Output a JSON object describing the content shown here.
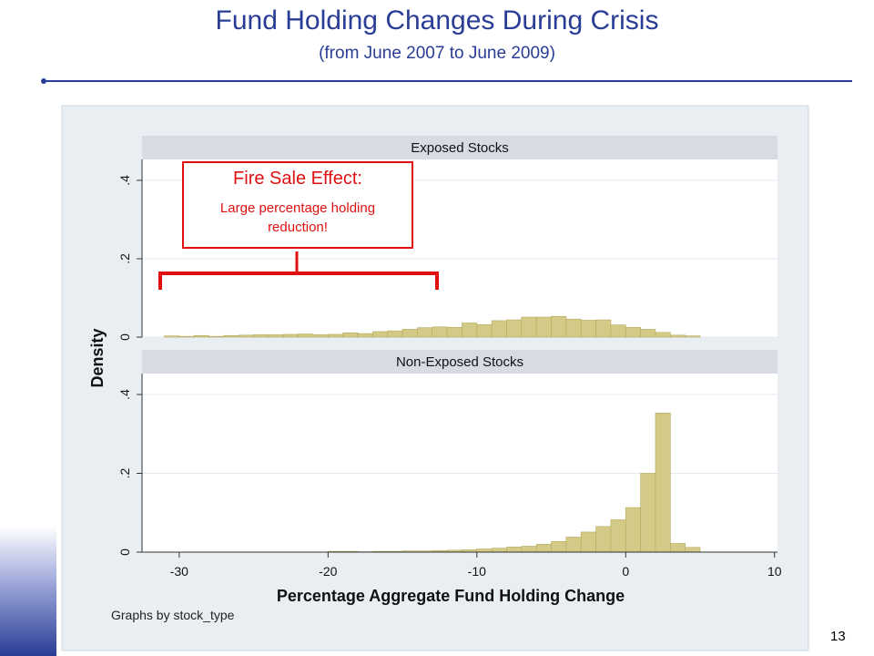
{
  "slide": {
    "title": "Fund Holding Changes During Crisis",
    "subtitle": "(from June 2007 to June 2009)",
    "page_number": "13"
  },
  "callout": {
    "heading": "Fire Sale Effect:",
    "body": "Large percentage holding reduction!"
  },
  "colors": {
    "title": "#2a3d96",
    "bar_fill": "#d4ca87",
    "bar_stroke": "#b3a95c",
    "panel_header": "#d6dbe4",
    "plot_background": "#e9eef3",
    "annotation": "#e01010"
  },
  "chart_data": {
    "type": "bar",
    "subtype": "histogram",
    "xlabel": "Percentage Aggregate Fund Holding Change",
    "ylabel": "Density",
    "note": "Graphs by stock_type",
    "xlim": [
      -32.5,
      10.2
    ],
    "x_ticks": [
      -30,
      -20,
      -10,
      0,
      10
    ],
    "ylim": [
      0,
      0.43
    ],
    "y_ticks": [
      0,
      0.2,
      0.4
    ],
    "bin_width": 1,
    "legend": "none",
    "grid": "horizontal",
    "panels": [
      {
        "name": "Exposed Stocks",
        "bins": [
          {
            "x0": -31,
            "density": 0.003
          },
          {
            "x0": -30,
            "density": 0.002
          },
          {
            "x0": -29,
            "density": 0.004
          },
          {
            "x0": -28,
            "density": 0.002
          },
          {
            "x0": -27,
            "density": 0.004
          },
          {
            "x0": -26,
            "density": 0.005
          },
          {
            "x0": -25,
            "density": 0.006
          },
          {
            "x0": -24,
            "density": 0.006
          },
          {
            "x0": -23,
            "density": 0.007
          },
          {
            "x0": -22,
            "density": 0.008
          },
          {
            "x0": -21,
            "density": 0.006
          },
          {
            "x0": -20,
            "density": 0.007
          },
          {
            "x0": -19,
            "density": 0.011
          },
          {
            "x0": -18,
            "density": 0.009
          },
          {
            "x0": -17,
            "density": 0.014
          },
          {
            "x0": -16,
            "density": 0.016
          },
          {
            "x0": -15,
            "density": 0.02
          },
          {
            "x0": -14,
            "density": 0.024
          },
          {
            "x0": -13,
            "density": 0.026
          },
          {
            "x0": -12,
            "density": 0.025
          },
          {
            "x0": -11,
            "density": 0.036
          },
          {
            "x0": -10,
            "density": 0.032
          },
          {
            "x0": -9,
            "density": 0.042
          },
          {
            "x0": -8,
            "density": 0.044
          },
          {
            "x0": -7,
            "density": 0.051
          },
          {
            "x0": -6,
            "density": 0.051
          },
          {
            "x0": -5,
            "density": 0.053
          },
          {
            "x0": -4,
            "density": 0.046
          },
          {
            "x0": -3,
            "density": 0.043
          },
          {
            "x0": -2,
            "density": 0.044
          },
          {
            "x0": -1,
            "density": 0.031
          },
          {
            "x0": 0,
            "density": 0.025
          },
          {
            "x0": 1,
            "density": 0.02
          },
          {
            "x0": 2,
            "density": 0.012
          },
          {
            "x0": 3,
            "density": 0.005
          },
          {
            "x0": 4,
            "density": 0.003
          }
        ]
      },
      {
        "name": "Non-Exposed Stocks",
        "bins": [
          {
            "x0": -20,
            "density": 0.002
          },
          {
            "x0": -19,
            "density": 0.002
          },
          {
            "x0": -18,
            "density": 0.001
          },
          {
            "x0": -17,
            "density": 0.002
          },
          {
            "x0": -16,
            "density": 0.002
          },
          {
            "x0": -15,
            "density": 0.003
          },
          {
            "x0": -14,
            "density": 0.003
          },
          {
            "x0": -13,
            "density": 0.004
          },
          {
            "x0": -12,
            "density": 0.005
          },
          {
            "x0": -11,
            "density": 0.006
          },
          {
            "x0": -10,
            "density": 0.008
          },
          {
            "x0": -9,
            "density": 0.01
          },
          {
            "x0": -8,
            "density": 0.013
          },
          {
            "x0": -7,
            "density": 0.015
          },
          {
            "x0": -6,
            "density": 0.02
          },
          {
            "x0": -5,
            "density": 0.027
          },
          {
            "x0": -4,
            "density": 0.038
          },
          {
            "x0": -3,
            "density": 0.051
          },
          {
            "x0": -2,
            "density": 0.065
          },
          {
            "x0": -1,
            "density": 0.082
          },
          {
            "x0": 0,
            "density": 0.113
          },
          {
            "x0": 1,
            "density": 0.2
          },
          {
            "x0": 2,
            "density": 0.353
          },
          {
            "x0": 3,
            "density": 0.022
          },
          {
            "x0": 4,
            "density": 0.012
          }
        ]
      }
    ]
  }
}
